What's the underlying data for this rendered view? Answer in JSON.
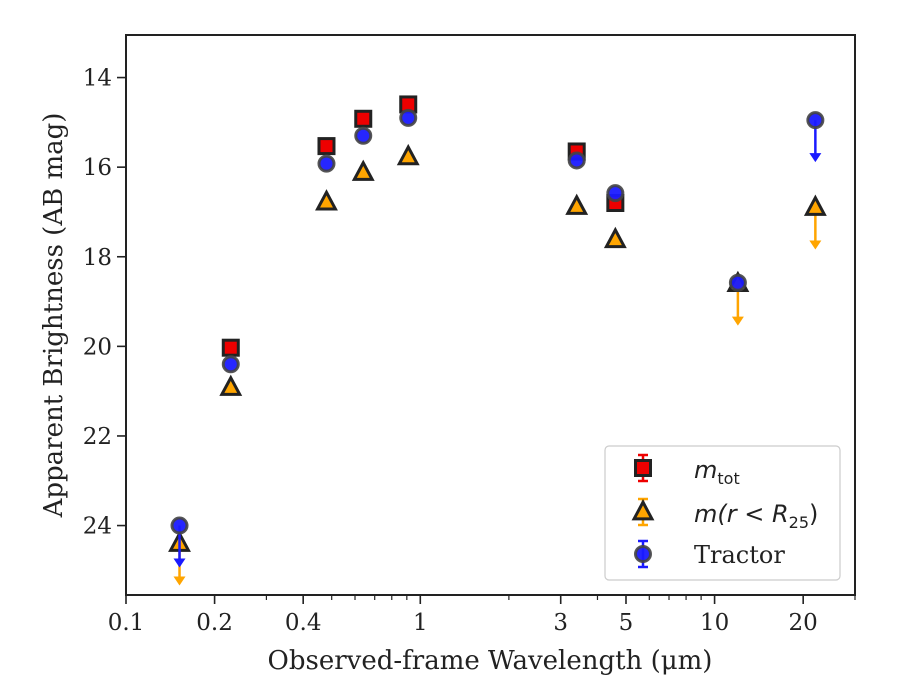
{
  "chart_data": {
    "type": "scatter",
    "xlabel": "Observed-frame Wavelength (μm)",
    "ylabel": "Apparent Brightness (AB mag)",
    "xscale": "log",
    "xlim": [
      0.1,
      30
    ],
    "ylim": [
      25.55,
      13.05
    ],
    "y_inverted": true,
    "x_ticks": [
      0.1,
      0.2,
      0.4,
      1,
      3,
      5,
      10,
      20
    ],
    "x_tick_labels": [
      "0.1",
      "0.2",
      "0.4",
      "1",
      "3",
      "5",
      "10",
      "20"
    ],
    "y_ticks": [
      14,
      16,
      18,
      20,
      22,
      24
    ],
    "y_tick_labels": [
      "14",
      "16",
      "18",
      "20",
      "22",
      "24"
    ],
    "legend": {
      "placement": "lower-right",
      "entries": [
        {
          "label": "m",
          "subscript": "tot",
          "math": true
        },
        {
          "label": "m(r < R",
          "subscript": "25",
          "suffix": ")",
          "math": true
        },
        {
          "label": "Tractor",
          "math": false
        }
      ]
    },
    "series": [
      {
        "name": "m_tot",
        "marker": "square",
        "color": "#ee0000",
        "edge": "#222222",
        "points": [
          {
            "x": 0.227,
            "y": 20.03
          },
          {
            "x": 0.48,
            "y": 15.53
          },
          {
            "x": 0.64,
            "y": 14.92
          },
          {
            "x": 0.91,
            "y": 14.6
          },
          {
            "x": 3.4,
            "y": 15.65
          },
          {
            "x": 4.6,
            "y": 16.8
          }
        ]
      },
      {
        "name": "m(r < R25)",
        "marker": "triangle",
        "color": "#ffa500",
        "edge": "#222222",
        "points": [
          {
            "x": 0.152,
            "y": 24.4,
            "upper_limit": true
          },
          {
            "x": 0.227,
            "y": 20.92
          },
          {
            "x": 0.48,
            "y": 16.78
          },
          {
            "x": 0.64,
            "y": 16.12
          },
          {
            "x": 0.91,
            "y": 15.77
          },
          {
            "x": 3.4,
            "y": 16.88
          },
          {
            "x": 4.6,
            "y": 17.62
          },
          {
            "x": 12.0,
            "y": 18.6,
            "upper_limit": true
          },
          {
            "x": 22.0,
            "y": 16.9,
            "upper_limit": true
          }
        ]
      },
      {
        "name": "Tractor",
        "marker": "circle",
        "color": "#1a1aff",
        "edge": "#444444",
        "points": [
          {
            "x": 0.152,
            "y": 24.0,
            "upper_limit": true
          },
          {
            "x": 0.227,
            "y": 20.4
          },
          {
            "x": 0.48,
            "y": 15.92
          },
          {
            "x": 0.64,
            "y": 15.3
          },
          {
            "x": 0.91,
            "y": 14.9
          },
          {
            "x": 3.4,
            "y": 15.85
          },
          {
            "x": 4.6,
            "y": 16.58
          },
          {
            "x": 12.0,
            "y": 18.58
          },
          {
            "x": 22.0,
            "y": 14.95,
            "upper_limit": true
          }
        ]
      }
    ]
  }
}
